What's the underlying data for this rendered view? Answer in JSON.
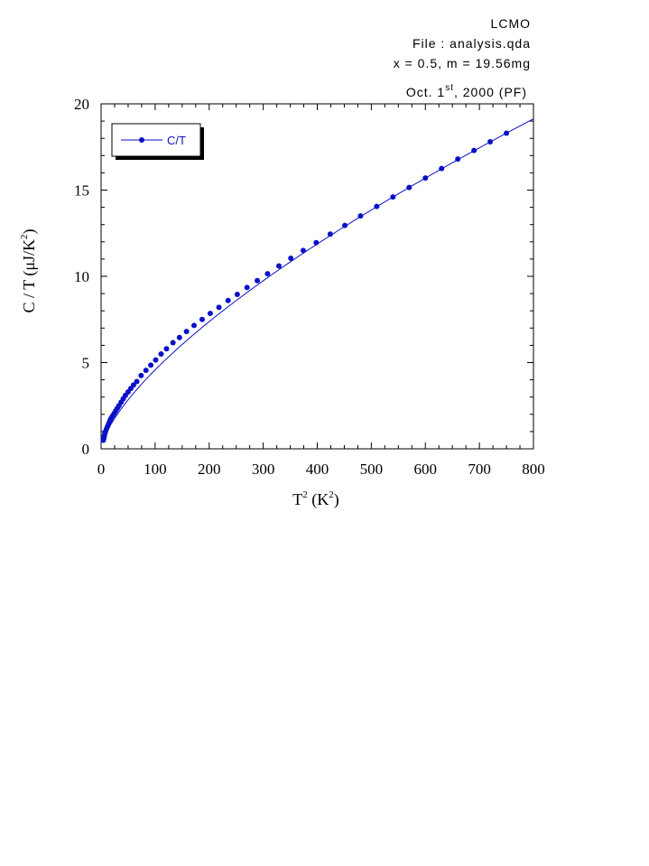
{
  "header": {
    "line1": "LCMO",
    "line2": "File : analysis.qda",
    "line3": "x = 0.5, m = 19.56mg",
    "line4_prefix": "Oct. 1",
    "line4_sup": "st",
    "line4_suffix": ", 2000 (PF)"
  },
  "chart_data": {
    "type": "line",
    "xlabel": {
      "base": "T",
      "sup1": "2",
      "mid": " (K",
      "sup2": "2",
      "end": ")"
    },
    "ylabel": {
      "base": "C / T (μJ/K",
      "sup": "2",
      "end": ")"
    },
    "xlim": [
      0,
      800
    ],
    "ylim": [
      0,
      20
    ],
    "x_ticks": [
      0,
      100,
      200,
      300,
      400,
      500,
      600,
      700,
      800
    ],
    "y_ticks": [
      0,
      5,
      10,
      15,
      20
    ],
    "grid": false,
    "legend_position": "top-left",
    "series": [
      {
        "name": "C/T",
        "color": "#0a10c8",
        "marker": "circle",
        "fit_curve_to_x": 800,
        "points": [
          [
            4,
            0.5
          ],
          [
            5,
            0.6
          ],
          [
            6,
            0.75
          ],
          [
            7,
            0.9
          ],
          [
            8,
            1.0
          ],
          [
            10,
            1.15
          ],
          [
            12,
            1.3
          ],
          [
            14,
            1.45
          ],
          [
            16,
            1.6
          ],
          [
            18,
            1.75
          ],
          [
            21,
            1.9
          ],
          [
            24,
            2.05
          ],
          [
            27,
            2.2
          ],
          [
            30,
            2.35
          ],
          [
            33,
            2.5
          ],
          [
            37,
            2.7
          ],
          [
            41,
            2.9
          ],
          [
            45,
            3.1
          ],
          [
            50,
            3.3
          ],
          [
            55,
            3.5
          ],
          [
            60,
            3.7
          ],
          [
            66,
            3.9
          ],
          [
            74,
            4.25
          ],
          [
            83,
            4.55
          ],
          [
            92,
            4.85
          ],
          [
            101,
            5.15
          ],
          [
            111,
            5.5
          ],
          [
            121,
            5.8
          ],
          [
            133,
            6.15
          ],
          [
            145,
            6.45
          ],
          [
            158,
            6.8
          ],
          [
            172,
            7.15
          ],
          [
            187,
            7.5
          ],
          [
            202,
            7.85
          ],
          [
            218,
            8.2
          ],
          [
            235,
            8.6
          ],
          [
            252,
            8.95
          ],
          [
            270,
            9.35
          ],
          [
            289,
            9.75
          ],
          [
            308,
            10.15
          ],
          [
            329,
            10.6
          ],
          [
            351,
            11.05
          ],
          [
            374,
            11.5
          ],
          [
            398,
            11.95
          ],
          [
            424,
            12.45
          ],
          [
            451,
            12.95
          ],
          [
            480,
            13.5
          ],
          [
            510,
            14.05
          ],
          [
            540,
            14.6
          ],
          [
            570,
            15.15
          ],
          [
            600,
            15.7
          ],
          [
            630,
            16.25
          ],
          [
            660,
            16.8
          ],
          [
            690,
            17.3
          ],
          [
            720,
            17.8
          ],
          [
            750,
            18.3
          ]
        ]
      }
    ]
  }
}
